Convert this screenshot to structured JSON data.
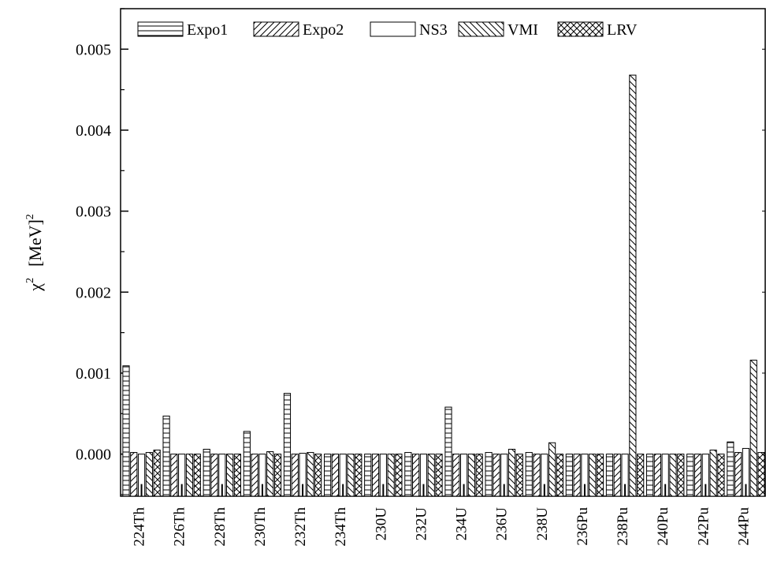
{
  "chart_data": {
    "type": "bar",
    "title": "",
    "xlabel": "",
    "ylabel": {
      "symbol": "χ",
      "symbol_sup": "2",
      "unit": "[MeV]",
      "unit_sup": "2"
    },
    "ylim": [
      -0.00052,
      0.0055
    ],
    "yticks": [
      "0.000",
      "0.001",
      "0.002",
      "0.003",
      "0.004",
      "0.005"
    ],
    "legend_position": "top",
    "categories": [
      "224Th",
      "226Th",
      "228Th",
      "230Th",
      "232Th",
      "234Th",
      "230U",
      "232U",
      "234U",
      "236U",
      "238U",
      "236Pu",
      "238Pu",
      "240Pu",
      "242Pu",
      "244Pu"
    ],
    "series": [
      {
        "name": "Expo1",
        "pattern": "horizontal",
        "values": [
          0.00109,
          0.00047,
          6e-05,
          0.00028,
          0.00075,
          0.0,
          0.0,
          2e-05,
          0.00058,
          2e-05,
          2e-05,
          0.0,
          0.0,
          0.0,
          0.0,
          0.00015
        ]
      },
      {
        "name": "Expo2",
        "pattern": "forward-diagonal",
        "values": [
          2e-05,
          0.0,
          0.0,
          0.0,
          0.0,
          0.0,
          0.0,
          0.0,
          0.0,
          0.0,
          0.0,
          0.0,
          0.0,
          0.0,
          0.0,
          2e-05
        ]
      },
      {
        "name": "NS3",
        "pattern": "empty",
        "values": [
          0.0,
          0.0,
          0.0,
          0.0,
          1e-05,
          0.0,
          0.0,
          0.0,
          0.0,
          0.0,
          0.0,
          0.0,
          0.0,
          0.0,
          0.0,
          7e-05
        ]
      },
      {
        "name": "VMI",
        "pattern": "back-diagonal",
        "values": [
          2e-05,
          0.0,
          0.0,
          3e-05,
          2e-05,
          0.0,
          0.0,
          0.0,
          0.0,
          6e-05,
          0.00014,
          0.0,
          0.00468,
          0.0,
          5e-05,
          0.00116
        ]
      },
      {
        "name": "LRV",
        "pattern": "cross",
        "values": [
          5e-05,
          0.0,
          0.0,
          0.0,
          0.0,
          0.0,
          0.0,
          0.0,
          0.0,
          0.0,
          0.0,
          0.0,
          0.0,
          0.0,
          0.0,
          2e-05
        ]
      }
    ]
  }
}
